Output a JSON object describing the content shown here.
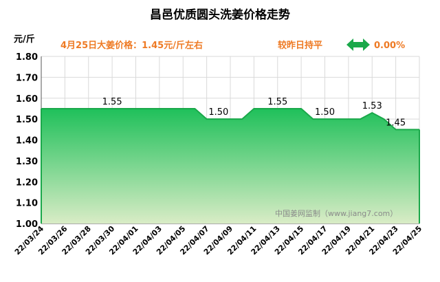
{
  "header": {
    "title": "昌邑优质圆头洗姜价格走势",
    "unit": "元/斤",
    "price_note": "4月25日大姜价格：1.45元/斤左右",
    "compare_note": "较昨日持平",
    "change": "0.00%",
    "change_icon": "double-arrow-icon",
    "accent_color": "#ee7a24",
    "arrow_color": "#1aa84a"
  },
  "watermark": "中国姜网监制（www.jiang7.com）",
  "chart_data": {
    "type": "area",
    "title": "昌邑优质圆头洗姜价格走势",
    "ylabel": "元/斤",
    "ylim": [
      1.0,
      1.8
    ],
    "yticks": [
      "1.00",
      "1.10",
      "1.20",
      "1.30",
      "1.40",
      "1.50",
      "1.60",
      "1.70",
      "1.80"
    ],
    "xticks": [
      "22/03/24",
      "22/03/26",
      "22/03/28",
      "22/03/30",
      "22/04/01",
      "22/04/03",
      "22/04/05",
      "22/04/07",
      "22/04/09",
      "22/04/11",
      "22/04/13",
      "22/04/15",
      "22/04/17",
      "22/04/19",
      "22/04/21",
      "22/04/23",
      "22/04/25"
    ],
    "x": [
      "22/03/24",
      "22/03/25",
      "22/03/26",
      "22/03/27",
      "22/03/28",
      "22/03/29",
      "22/03/30",
      "22/03/31",
      "22/04/01",
      "22/04/02",
      "22/04/03",
      "22/04/04",
      "22/04/05",
      "22/04/06",
      "22/04/07",
      "22/04/08",
      "22/04/09",
      "22/04/10",
      "22/04/11",
      "22/04/12",
      "22/04/13",
      "22/04/14",
      "22/04/15",
      "22/04/16",
      "22/04/17",
      "22/04/18",
      "22/04/19",
      "22/04/20",
      "22/04/21",
      "22/04/22",
      "22/04/23",
      "22/04/24",
      "22/04/25"
    ],
    "values": [
      1.55,
      1.55,
      1.55,
      1.55,
      1.55,
      1.55,
      1.55,
      1.55,
      1.55,
      1.55,
      1.55,
      1.55,
      1.55,
      1.55,
      1.5,
      1.5,
      1.5,
      1.5,
      1.55,
      1.55,
      1.55,
      1.55,
      1.55,
      1.5,
      1.5,
      1.5,
      1.5,
      1.5,
      1.53,
      1.5,
      1.45,
      1.45,
      1.45
    ],
    "data_labels": [
      {
        "x": "22/03/30",
        "text": "1.55"
      },
      {
        "x": "22/04/08",
        "text": "1.50"
      },
      {
        "x": "22/04/13",
        "text": "1.55"
      },
      {
        "x": "22/04/17",
        "text": "1.50"
      },
      {
        "x": "22/04/21",
        "text": "1.53"
      },
      {
        "x": "22/04/23",
        "text": "1.45"
      }
    ],
    "grid": true,
    "line_color": "#1aa84a",
    "fill_top_color": "#1fc05a",
    "fill_bottom_color": "#d9ecc6"
  }
}
